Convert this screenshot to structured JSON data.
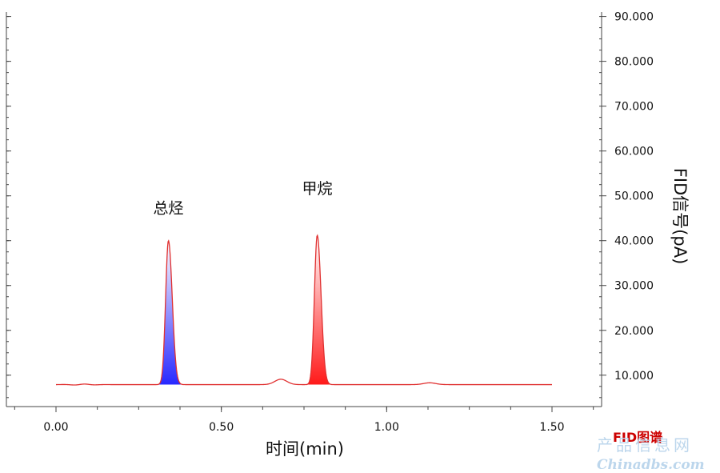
{
  "chart_data": {
    "type": "line",
    "xlabel": "时间(min)",
    "ylabel": "FID信号(pA)",
    "xlim": [
      -0.15,
      1.65
    ],
    "ylim": [
      3,
      91
    ],
    "x_ticks": [
      {
        "value": 0.0,
        "label": "0.00"
      },
      {
        "value": 0.5,
        "label": "0.50"
      },
      {
        "value": 1.0,
        "label": "1.00"
      },
      {
        "value": 1.5,
        "label": "1.50"
      }
    ],
    "y_ticks": [
      {
        "value": 10,
        "label": "10.000"
      },
      {
        "value": 20,
        "label": "20.000"
      },
      {
        "value": 30,
        "label": "30.000"
      },
      {
        "value": 40,
        "label": "40.000"
      },
      {
        "value": 50,
        "label": "50.000"
      },
      {
        "value": 60,
        "label": "60.000"
      },
      {
        "value": 70,
        "label": "70.000"
      },
      {
        "value": 80,
        "label": "80.000"
      },
      {
        "value": 90,
        "label": "90.000"
      }
    ],
    "y_axis_side": "right",
    "grid": false,
    "baseline": 7.9,
    "x_range": [
      0.0,
      1.5
    ],
    "line_color": "#e03030",
    "peaks": [
      {
        "label": "总烃",
        "x": 0.34,
        "height": 40.0,
        "color": "#3030ff"
      },
      {
        "label": "甲烷",
        "x": 0.79,
        "height": 41.2,
        "color": "#ff2020"
      }
    ],
    "bumps": [
      {
        "x": 0.68,
        "height": 9.1
      },
      {
        "x": 1.13,
        "height": 8.3
      }
    ]
  },
  "caption": "FID图谱",
  "watermark": {
    "line1": "产品信息网",
    "line2": "Chinadbs.com"
  },
  "colors": {
    "axis": "#444444",
    "signal": "#e03030",
    "peak_total": "#3030ff",
    "peak_methane": "#ff2020"
  }
}
